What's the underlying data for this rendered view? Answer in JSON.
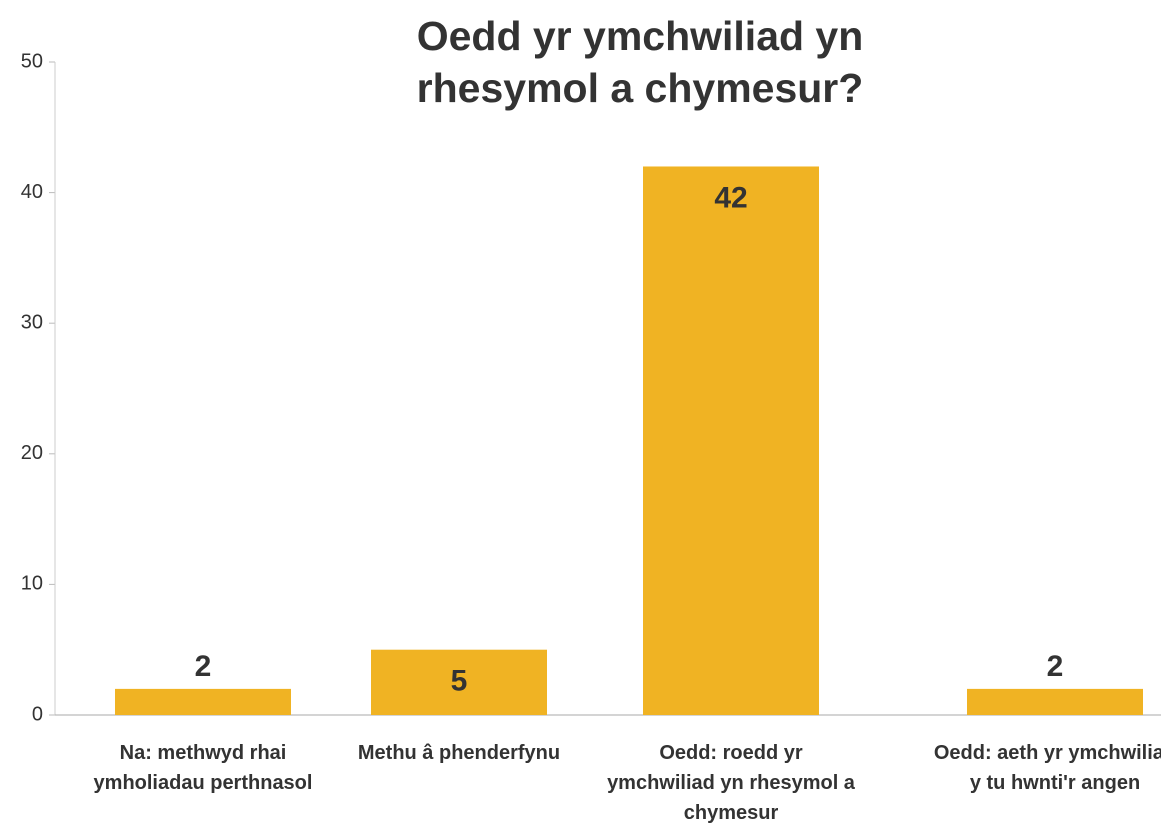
{
  "chart_data": {
    "type": "bar",
    "title": "Oedd yr ymchwiliad yn rhesymol a chymesur?",
    "categories": [
      "Na: methwyd rhai ymholiadau perthnasol",
      "Methu â phenderfynu",
      "Oedd: roedd yr ymchwiliad yn rhesymol a chymesur",
      "Oedd: aeth yr ymchwiliad y tu hwnti'r angen"
    ],
    "values": [
      2,
      5,
      42,
      2
    ],
    "color": "#f0b323",
    "ylim": [
      0,
      50
    ],
    "yticks": [
      0,
      10,
      20,
      30,
      40,
      50
    ],
    "grid": false
  }
}
